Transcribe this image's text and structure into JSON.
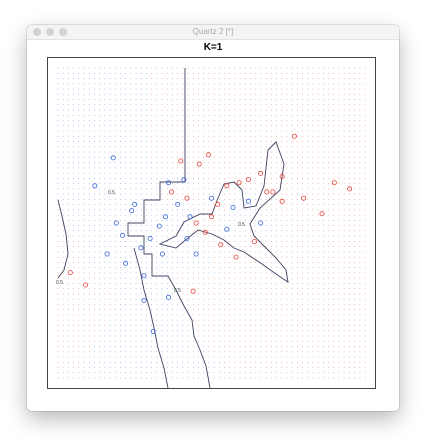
{
  "window": {
    "title": "Quartz 2 [*]"
  },
  "chart_data": {
    "type": "scatter",
    "title": "K=1",
    "xlim": [
      0,
      1
    ],
    "ylim": [
      0,
      1
    ],
    "grid": "dotted class-colored prediction grid",
    "colors": {
      "class0": "#3a66d9",
      "class1": "#e8433a",
      "boundary": "#404060"
    },
    "contour_label": "0.5",
    "series": [
      {
        "class": 0,
        "points": [
          [
            0.12,
            0.62
          ],
          [
            0.19,
            0.5
          ],
          [
            0.21,
            0.46
          ],
          [
            0.24,
            0.54
          ],
          [
            0.27,
            0.42
          ],
          [
            0.3,
            0.45
          ],
          [
            0.33,
            0.49
          ],
          [
            0.35,
            0.52
          ],
          [
            0.28,
            0.25
          ],
          [
            0.31,
            0.15
          ],
          [
            0.36,
            0.26
          ],
          [
            0.22,
            0.37
          ],
          [
            0.39,
            0.56
          ],
          [
            0.43,
            0.52
          ],
          [
            0.45,
            0.4
          ],
          [
            0.57,
            0.55
          ],
          [
            0.62,
            0.57
          ],
          [
            0.41,
            0.64
          ],
          [
            0.36,
            0.63
          ],
          [
            0.18,
            0.71
          ],
          [
            0.16,
            0.4
          ],
          [
            0.28,
            0.33
          ],
          [
            0.42,
            0.45
          ],
          [
            0.55,
            0.48
          ],
          [
            0.66,
            0.5
          ],
          [
            0.34,
            0.4
          ],
          [
            0.5,
            0.58
          ],
          [
            0.25,
            0.56
          ]
        ]
      },
      {
        "class": 1,
        "points": [
          [
            0.4,
            0.7
          ],
          [
            0.46,
            0.69
          ],
          [
            0.49,
            0.72
          ],
          [
            0.55,
            0.62
          ],
          [
            0.62,
            0.64
          ],
          [
            0.66,
            0.66
          ],
          [
            0.7,
            0.6
          ],
          [
            0.73,
            0.57
          ],
          [
            0.77,
            0.78
          ],
          [
            0.8,
            0.58
          ],
          [
            0.86,
            0.53
          ],
          [
            0.9,
            0.63
          ],
          [
            0.95,
            0.61
          ],
          [
            0.58,
            0.39
          ],
          [
            0.64,
            0.44
          ],
          [
            0.5,
            0.52
          ],
          [
            0.48,
            0.47
          ],
          [
            0.53,
            0.43
          ],
          [
            0.45,
            0.5
          ],
          [
            0.44,
            0.28
          ],
          [
            0.68,
            0.6
          ],
          [
            0.73,
            0.65
          ],
          [
            0.37,
            0.6
          ],
          [
            0.04,
            0.34
          ],
          [
            0.09,
            0.3
          ],
          [
            0.52,
            0.56
          ],
          [
            0.59,
            0.63
          ],
          [
            0.42,
            0.58
          ]
        ]
      }
    ]
  }
}
